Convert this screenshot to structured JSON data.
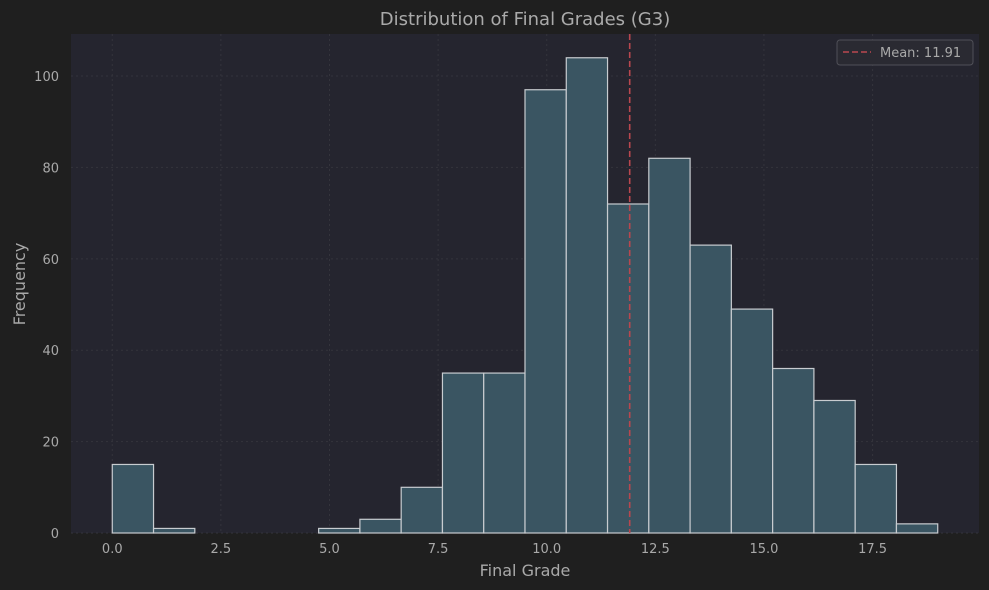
{
  "colors": {
    "figure_bg": "#1f1f1f",
    "plot_bg": "#25252f",
    "grid": "#34343c",
    "bar_fill": "#3a5562",
    "bar_edge": "#c8ccd0",
    "mean_line": "#b9474f",
    "text": "#a9a9a9",
    "title": "#aaaaaa",
    "legend_bg": "#2a2a32",
    "legend_edge": "#505058"
  },
  "chart_data": {
    "type": "bar",
    "title": "Distribution of Final Grades (G3)",
    "xlabel": "Final Grade",
    "ylabel": "Frequency",
    "xlim": [
      -0.95,
      19.95
    ],
    "ylim": [
      0,
      109.2
    ],
    "x_ticks": [
      0.0,
      2.5,
      5.0,
      7.5,
      10.0,
      12.5,
      15.0,
      17.5
    ],
    "x_tick_labels": [
      "0.0",
      "2.5",
      "5.0",
      "7.5",
      "10.0",
      "12.5",
      "15.0",
      "17.5"
    ],
    "y_ticks": [
      0,
      20,
      40,
      60,
      80,
      100
    ],
    "y_tick_labels": [
      "0",
      "20",
      "40",
      "60",
      "80",
      "100"
    ],
    "bin_edges": [
      0,
      0.95,
      1.9,
      2.85,
      3.8,
      4.75,
      5.7,
      6.65,
      7.6,
      8.55,
      9.5,
      10.45,
      11.4,
      12.35,
      13.3,
      14.25,
      15.2,
      16.15,
      17.1,
      18.05,
      19.0
    ],
    "values": [
      15,
      1,
      0,
      0,
      0,
      1,
      3,
      10,
      35,
      35,
      97,
      104,
      72,
      82,
      63,
      49,
      36,
      29,
      15,
      2
    ],
    "grid": true,
    "mean": 11.91,
    "legend": {
      "position": "top-right",
      "label": "Mean: 11.91"
    }
  }
}
